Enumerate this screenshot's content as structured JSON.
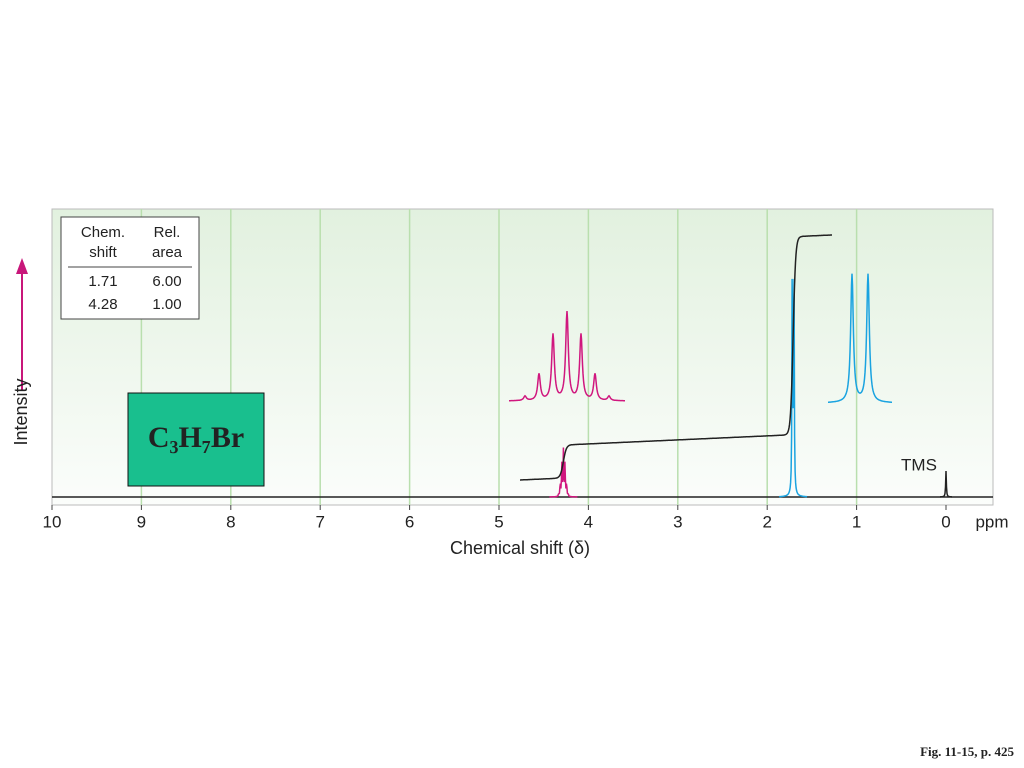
{
  "chart_data": {
    "type": "nmr",
    "compound": "C₃H₇Br",
    "xlabel": "Chemical shift (δ)",
    "xunit": "ppm",
    "ylabel": "Intensity",
    "xlim": [
      10,
      0
    ],
    "xticks": [
      10,
      9,
      8,
      7,
      6,
      5,
      4,
      3,
      2,
      1,
      0
    ],
    "grid": true,
    "reference": {
      "label": "TMS",
      "shift": 0
    },
    "table": {
      "header": [
        [
          "Chem.",
          "shift"
        ],
        [
          "Rel.",
          "area"
        ]
      ],
      "rows": [
        [
          "1.71",
          "6.00"
        ],
        [
          "4.28",
          "1.00"
        ]
      ]
    },
    "peak_colors": [
      "#1aa3e0",
      "#d0177e"
    ],
    "caption": "Fig. 11-15, p. 425"
  }
}
